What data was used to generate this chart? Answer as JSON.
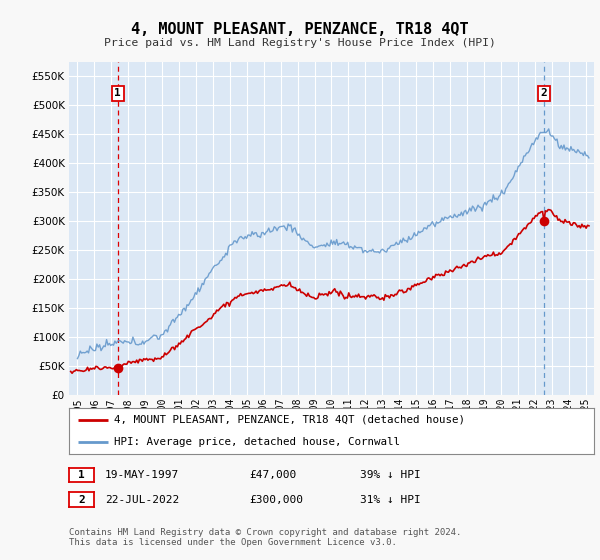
{
  "title": "4, MOUNT PLEASANT, PENZANCE, TR18 4QT",
  "subtitle": "Price paid vs. HM Land Registry's House Price Index (HPI)",
  "ylim": [
    0,
    575000
  ],
  "yticks": [
    0,
    50000,
    100000,
    150000,
    200000,
    250000,
    300000,
    350000,
    400000,
    450000,
    500000,
    550000
  ],
  "ytick_labels": [
    "£0",
    "£50K",
    "£100K",
    "£150K",
    "£200K",
    "£250K",
    "£300K",
    "£350K",
    "£400K",
    "£450K",
    "£500K",
    "£550K"
  ],
  "background_color": "#f0f0f0",
  "plot_bg_color": "#dce8f5",
  "grid_color": "#ffffff",
  "sale1_date": 1997.38,
  "sale1_price": 47000,
  "sale1_label": "1",
  "sale2_date": 2022.55,
  "sale2_price": 300000,
  "sale2_label": "2",
  "sale_color": "#cc0000",
  "hpi_color": "#6699cc",
  "vline1_color": "#dd0000",
  "vline2_color": "#6699cc",
  "legend_red_label": "4, MOUNT PLEASANT, PENZANCE, TR18 4QT (detached house)",
  "legend_blue_label": "HPI: Average price, detached house, Cornwall",
  "table_row1": [
    "1",
    "19-MAY-1997",
    "£47,000",
    "39% ↓ HPI"
  ],
  "table_row2": [
    "2",
    "22-JUL-2022",
    "£300,000",
    "31% ↓ HPI"
  ],
  "footnote": "Contains HM Land Registry data © Crown copyright and database right 2024.\nThis data is licensed under the Open Government Licence v3.0.",
  "xmin": 1994.5,
  "xmax": 2025.5
}
